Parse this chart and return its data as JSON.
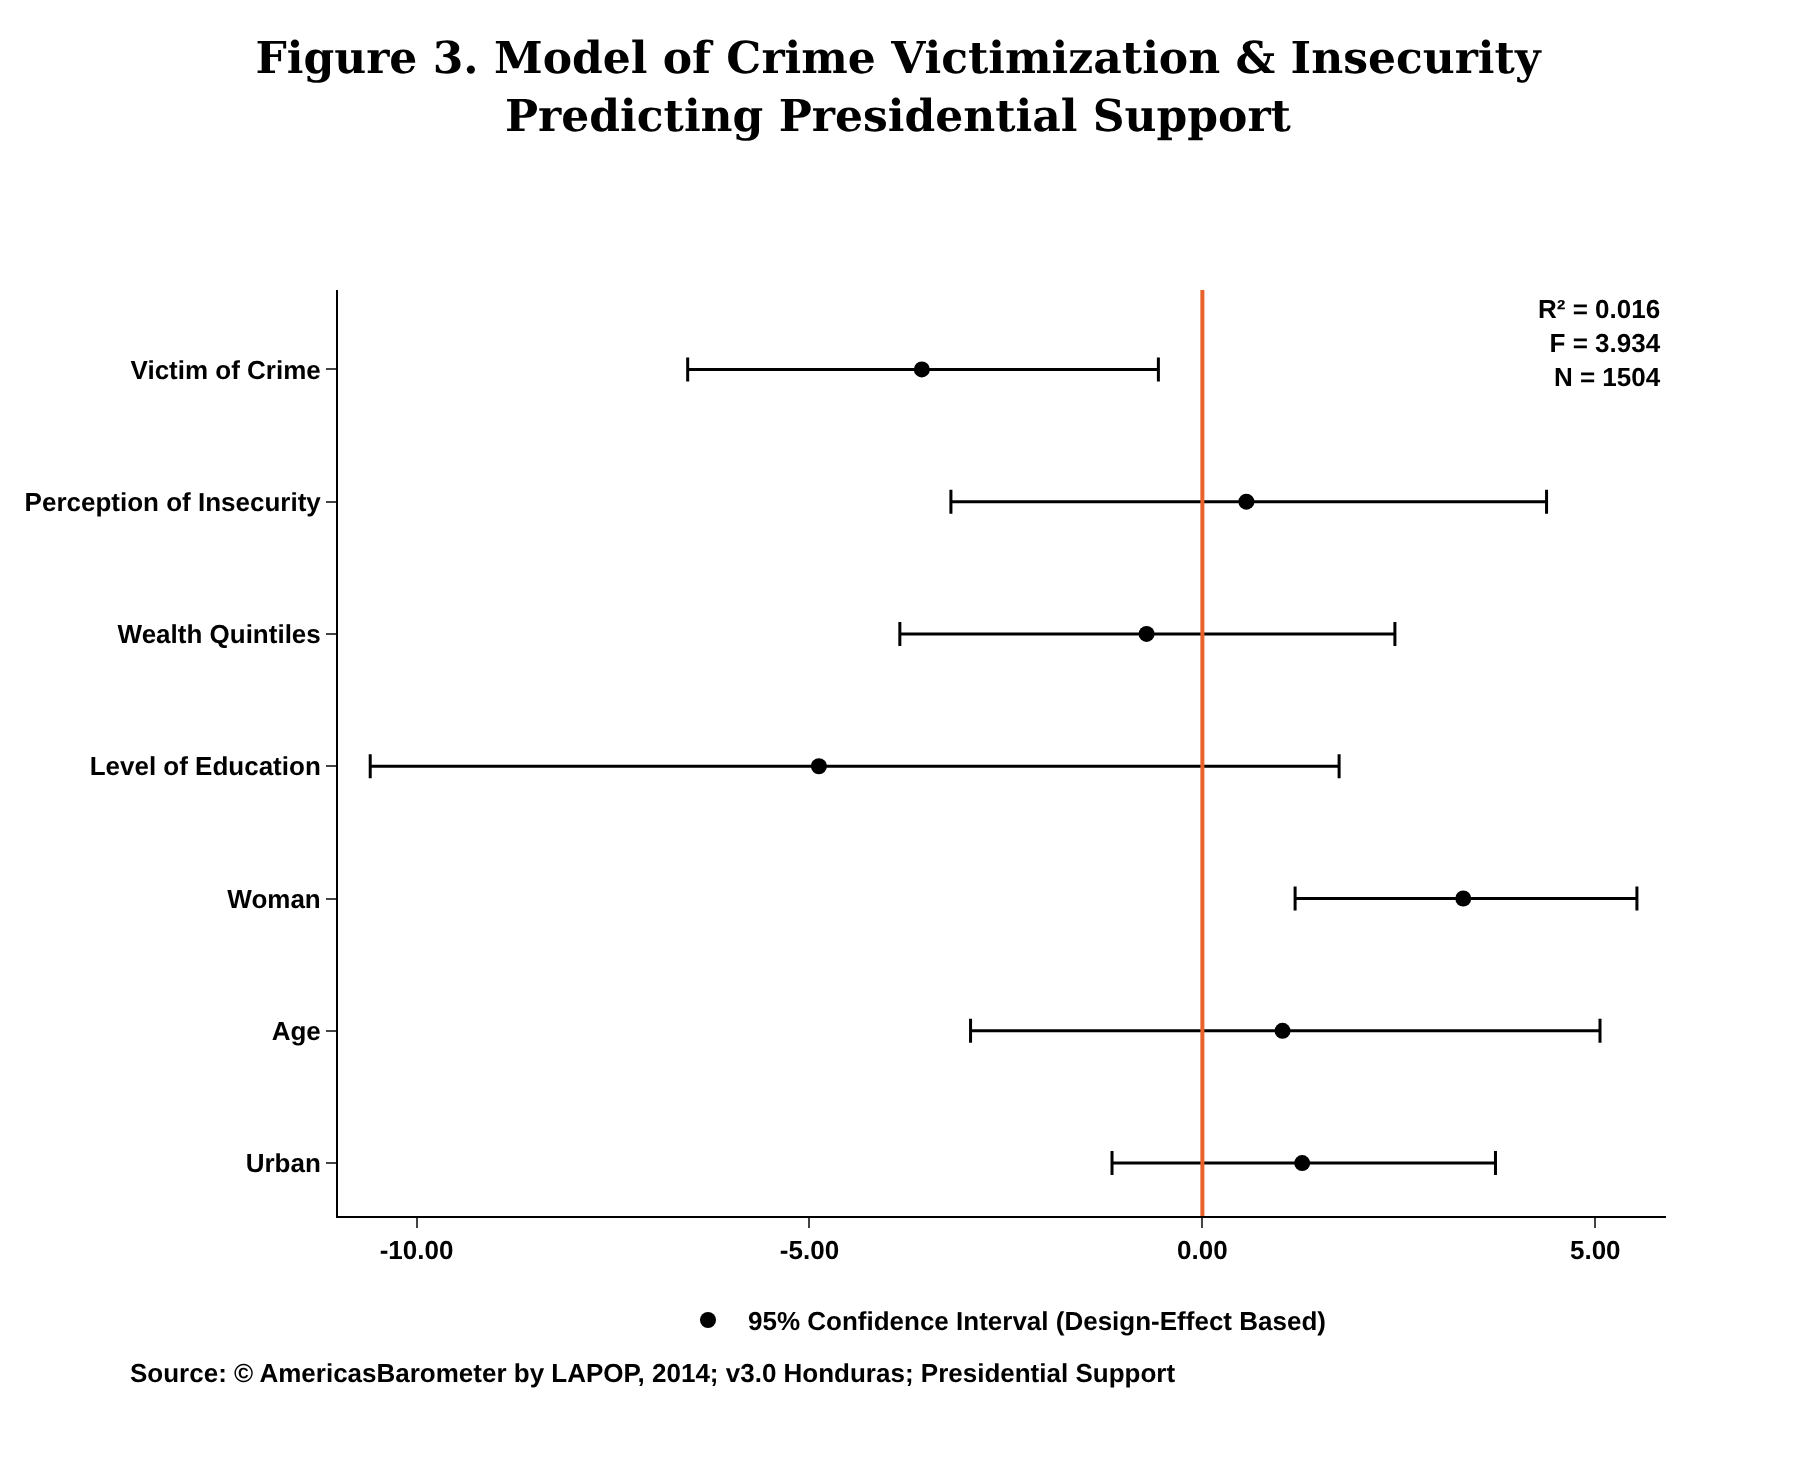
{
  "chart_data": {
    "type": "scatter",
    "orientation": "horizontal",
    "title": "Figure 3. Model of Crime Victimization & Insecurity\nPredicting Presidential Support",
    "categories": [
      "Victim of Crime",
      "Perception of Insecurity",
      "Wealth Quintiles",
      "Level of Education",
      "Woman",
      "Age",
      "Urban"
    ],
    "series": [
      {
        "name": "95% Confidence Interval (Design-Effect Based)",
        "color": "#000000",
        "values": [
          -3.57,
          0.56,
          -0.71,
          -4.88,
          3.32,
          1.02,
          1.27
        ],
        "errors": [
          [
            -6.55,
            -0.56
          ],
          [
            -3.2,
            4.38
          ],
          [
            -3.85,
            2.45
          ],
          [
            -10.59,
            1.74
          ],
          [
            1.18,
            5.53
          ],
          [
            -2.95,
            5.06
          ],
          [
            -1.15,
            3.73
          ]
        ]
      }
    ],
    "xlim": [
      -11.0,
      5.9
    ],
    "xticks": [
      {
        "value": -10,
        "label": "-10.00"
      },
      {
        "value": -5,
        "label": "-5.00"
      },
      {
        "value": 0,
        "label": "0.00"
      },
      {
        "value": 5,
        "label": "5.00"
      }
    ],
    "ref_lines": [
      {
        "axis": "x",
        "value": 0,
        "label": null,
        "color": "#e8622c"
      }
    ],
    "annotations": [
      "R² = 0.016\nF = 3.934\nN = 1504",
      "Source: © AmericasBarometer by LAPOP, 2014; v3.0 Honduras; Presidential Support"
    ],
    "marker": "circle",
    "legend": "bottom"
  }
}
